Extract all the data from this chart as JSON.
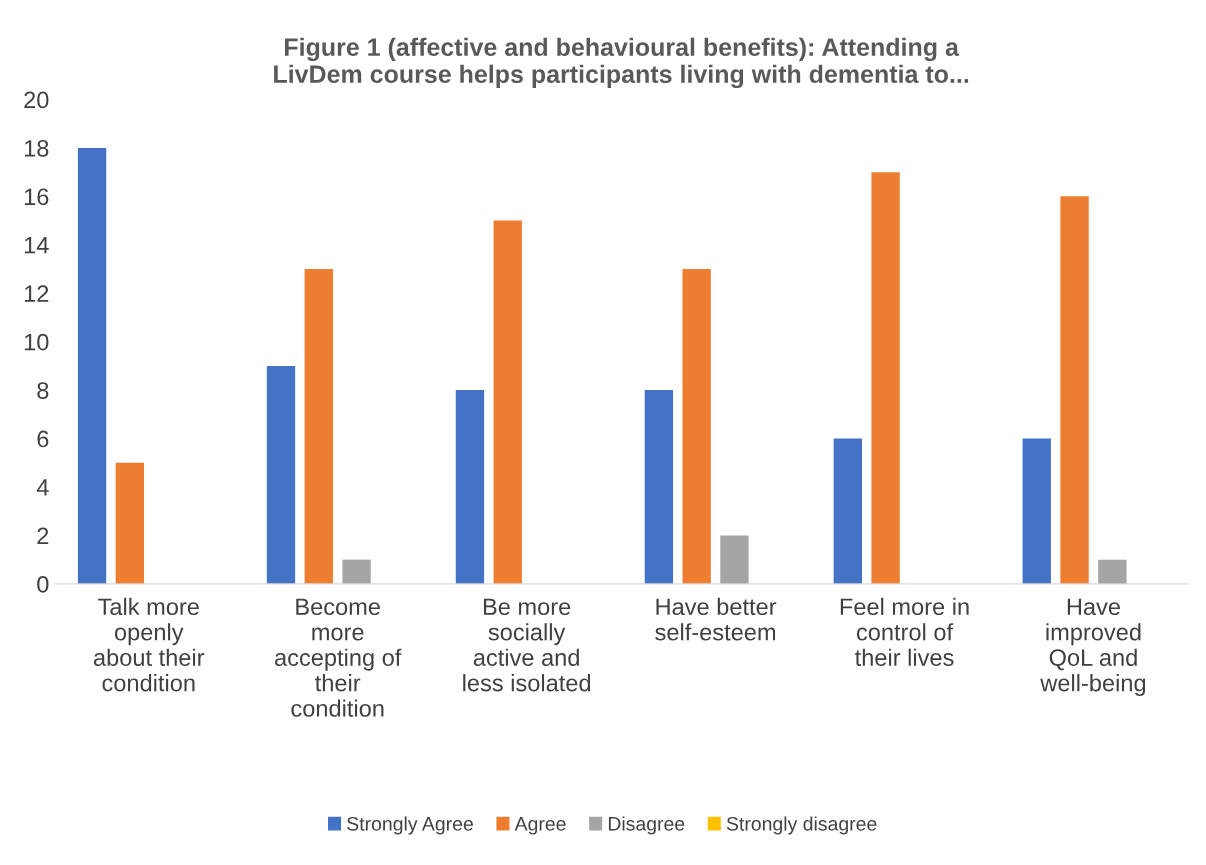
{
  "chart_data": {
    "type": "bar",
    "title": "Figure 1 (affective and behavioural benefits): Attending a\nLivDem course helps participants living with dementia to...",
    "categories": [
      "Talk more\nopenly\nabout their\ncondition",
      "Become\nmore\naccepting of\ntheir\ncondition",
      "Be more\nsocially\nactive and\nless isolated",
      "Have better\nself-esteem",
      "Feel more in\ncontrol of\ntheir lives",
      "Have\nimproved\nQoL and\nwell-being"
    ],
    "series": [
      {
        "name": "Strongly Agree",
        "color": "#4472c4",
        "values": [
          18,
          9,
          8,
          8,
          6,
          6
        ]
      },
      {
        "name": "Agree",
        "color": "#ed7d31",
        "values": [
          5,
          13,
          15,
          13,
          17,
          16
        ]
      },
      {
        "name": "Disagree",
        "color": "#a5a5a5",
        "values": [
          0,
          1,
          0,
          2,
          0,
          1
        ]
      },
      {
        "name": "Strongly disagree",
        "color": "#ffc000",
        "values": [
          0,
          0,
          0,
          0,
          0,
          0
        ]
      }
    ],
    "ylim": [
      0,
      20
    ],
    "yticks": [
      0,
      2,
      4,
      6,
      8,
      10,
      12,
      14,
      16,
      18,
      20
    ],
    "grid": false,
    "legend": "bottom"
  }
}
